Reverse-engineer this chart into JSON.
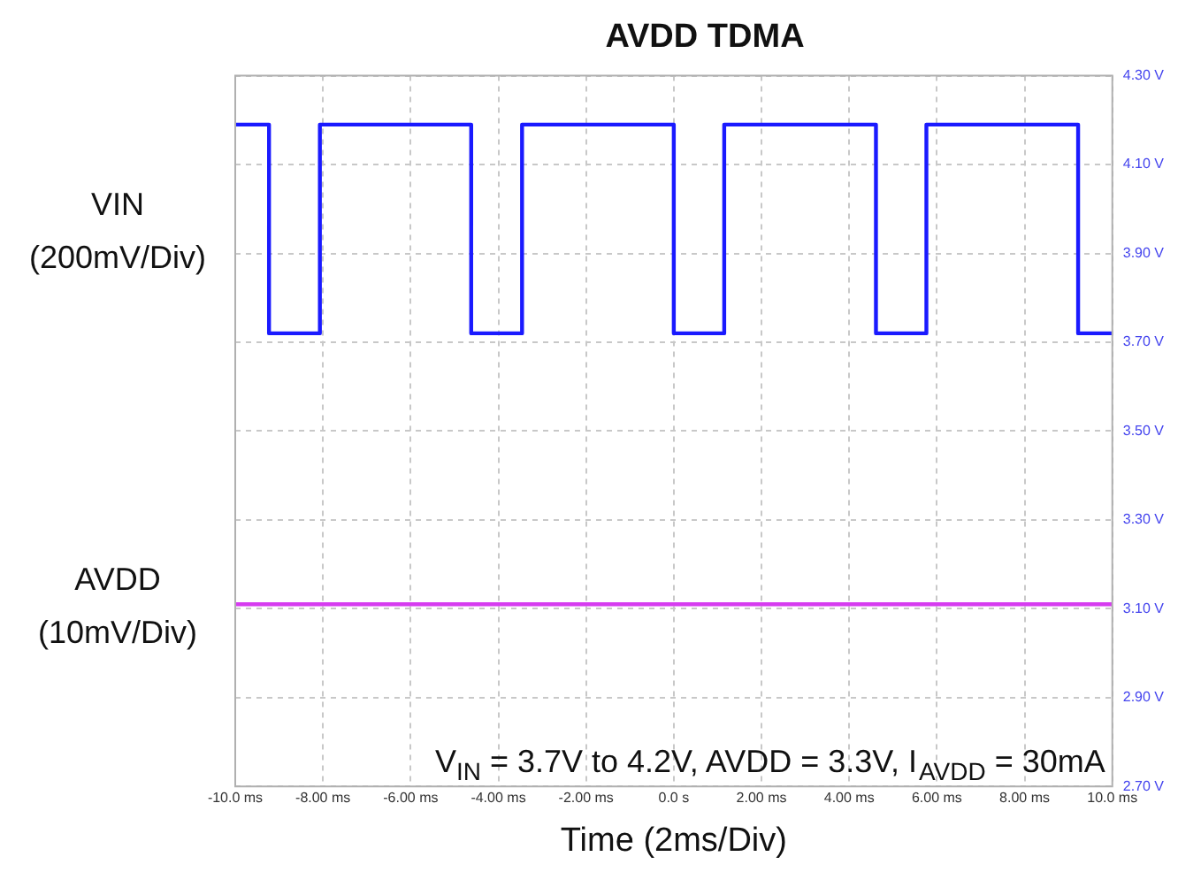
{
  "chart_data": {
    "type": "line",
    "title": "AVDD TDMA",
    "xlabel": "Time (2ms/Div)",
    "xlim": [
      -10,
      10
    ],
    "xticks": [
      {
        "value": -10,
        "label": "-10.0 ms"
      },
      {
        "value": -8,
        "label": "-8.00 ms"
      },
      {
        "value": -6,
        "label": "-6.00 ms"
      },
      {
        "value": -4,
        "label": "-4.00 ms"
      },
      {
        "value": -2,
        "label": "-2.00 ms"
      },
      {
        "value": 0,
        "label": "0.0 s"
      },
      {
        "value": 2,
        "label": "2.00 ms"
      },
      {
        "value": 4,
        "label": "4.00 ms"
      },
      {
        "value": 6,
        "label": "6.00 ms"
      },
      {
        "value": 8,
        "label": "8.00 ms"
      },
      {
        "value": 10,
        "label": "10.0 ms"
      }
    ],
    "ylim": [
      2.7,
      4.3
    ],
    "yticks": [
      {
        "value": 2.7,
        "label": "2.70 V"
      },
      {
        "value": 2.9,
        "label": "2.90 V"
      },
      {
        "value": 3.1,
        "label": "3.10 V"
      },
      {
        "value": 3.3,
        "label": "3.30 V"
      },
      {
        "value": 3.5,
        "label": "3.50 V"
      },
      {
        "value": 3.7,
        "label": "3.70 V"
      },
      {
        "value": 3.9,
        "label": "3.90 V"
      },
      {
        "value": 4.1,
        "label": "4.10 V"
      },
      {
        "value": 4.3,
        "label": "4.30 V"
      }
    ],
    "grid": true,
    "legend": false,
    "marker": "none",
    "line_style": "solid",
    "series": [
      {
        "name": "VIN (200mV/Div)",
        "color": "#1a1aff",
        "x": [
          -10,
          -9.23,
          -9.23,
          -8.07,
          -8.07,
          -4.62,
          -4.62,
          -3.46,
          -3.46,
          0,
          0,
          1.15,
          1.15,
          4.61,
          4.61,
          5.76,
          5.76,
          9.22,
          9.22,
          10
        ],
        "values": [
          4.19,
          4.19,
          3.72,
          3.72,
          4.19,
          4.19,
          3.72,
          3.72,
          4.19,
          4.19,
          3.72,
          3.72,
          4.19,
          4.19,
          3.72,
          3.72,
          4.19,
          4.19,
          3.72,
          3.72
        ]
      },
      {
        "name": "AVDD (10mV/Div)",
        "color": "#d63cf0",
        "x": [
          -10,
          10
        ],
        "values": [
          3.11,
          3.11
        ]
      }
    ],
    "annotations": [
      "V$_{IN}$ = 3.7V to 4.2V, AVDD = 3.3V, I$_{AVDD}$ = 30mA"
    ]
  }
}
